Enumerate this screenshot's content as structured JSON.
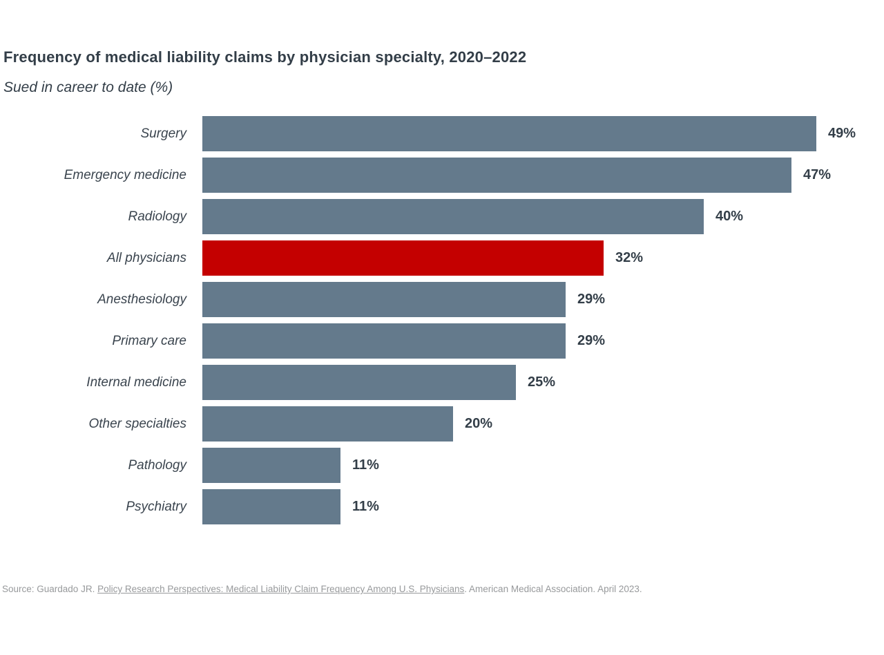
{
  "header": {
    "title": "Frequency of medical liability claims by physician specialty, 2020–2022",
    "subtitle": "Sued in career to date (%)"
  },
  "chart_data": {
    "type": "bar",
    "orientation": "horizontal",
    "title": "Frequency of medical liability claims by physician specialty, 2020–2022",
    "subtitle": "Sued in career to date (%)",
    "unit": "%",
    "categories": [
      "Surgery",
      "Emergency medicine",
      "Radiology",
      "All physicians",
      "Anesthesiology",
      "Primary care",
      "Internal medicine",
      "Other specialties",
      "Pathology",
      "Psychiatry"
    ],
    "values": [
      49,
      47,
      40,
      32,
      29,
      29,
      25,
      20,
      11,
      11
    ],
    "value_labels": [
      "49%",
      "47%",
      "40%",
      "32%",
      "29%",
      "29%",
      "25%",
      "20%",
      "11%",
      "11%"
    ],
    "highlight_category": "All physicians",
    "xlim": [
      0,
      54
    ],
    "grid": false,
    "legend": false,
    "data_labels": "outside-end",
    "colors": {
      "bar": "#647a8c",
      "highlight": "#c40000",
      "text": "#333e48"
    }
  },
  "source": {
    "prefix": "Source: Guardado JR. ",
    "link_text": "Policy Research Perspectives: Medical Liability Claim Frequency Among U.S. Physicians",
    "suffix": ". American Medical Association. April 2023."
  }
}
